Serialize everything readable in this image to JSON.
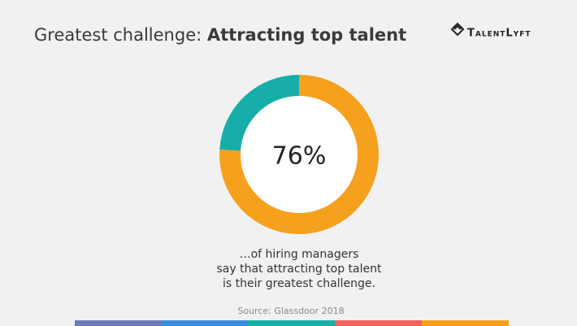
{
  "chart_data": {
    "type": "donut",
    "title_prefix": "Greatest challenge:",
    "title_bold": "Attracting top talent",
    "brand": "TalentLyft",
    "values": [
      76,
      24
    ],
    "value_labels": [
      "76%",
      null
    ],
    "colors": [
      "#f5a11e",
      "#17aea9"
    ],
    "caption": [
      "…of hiring managers",
      "say that attracting top talent",
      "is their greatest challenge."
    ],
    "source": "Source: Glassdoor 2018"
  }
}
